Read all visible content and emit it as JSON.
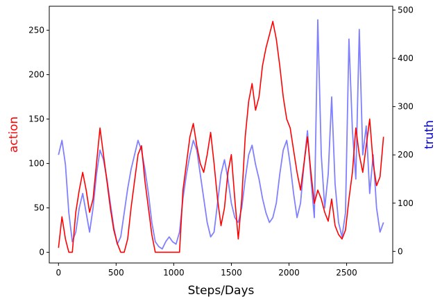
{
  "chart_data": {
    "type": "line",
    "title": "",
    "xlabel": "Steps/Days",
    "ylabel_left": "action",
    "ylabel_right": "truth",
    "xlim": [
      -80,
      2900
    ],
    "ylim_left": [
      -12,
      277
    ],
    "ylim_right": [
      -24,
      508
    ],
    "xticks": [
      0,
      500,
      1000,
      1500,
      2000,
      2500
    ],
    "yticks_left": [
      0,
      50,
      100,
      150,
      200,
      250
    ],
    "yticks_right": [
      0,
      100,
      200,
      300,
      400,
      500
    ],
    "grid": false,
    "colors": {
      "action": "#ff0000",
      "truth": "#8080ff",
      "axis_left_label": "#ff0000",
      "axis_right_label": "#0000cc"
    },
    "series": [
      {
        "key": "action",
        "axis": "left",
        "x": [
          0,
          30,
          60,
          90,
          120,
          150,
          180,
          210,
          240,
          270,
          300,
          330,
          360,
          390,
          420,
          450,
          480,
          510,
          540,
          570,
          600,
          630,
          660,
          690,
          720,
          750,
          780,
          810,
          840,
          870,
          900,
          930,
          960,
          990,
          1020,
          1050,
          1080,
          1110,
          1140,
          1170,
          1200,
          1230,
          1260,
          1290,
          1320,
          1350,
          1380,
          1410,
          1440,
          1470,
          1500,
          1530,
          1560,
          1590,
          1620,
          1650,
          1680,
          1710,
          1740,
          1770,
          1800,
          1830,
          1860,
          1890,
          1920,
          1950,
          1980,
          2010,
          2040,
          2070,
          2100,
          2130,
          2160,
          2190,
          2220,
          2250,
          2280,
          2310,
          2340,
          2370,
          2400,
          2430,
          2460,
          2490,
          2520,
          2550,
          2580,
          2610,
          2640,
          2670,
          2700,
          2730,
          2760,
          2790,
          2820
        ],
        "y": [
          5,
          40,
          15,
          0,
          0,
          45,
          70,
          90,
          70,
          45,
          60,
          100,
          140,
          110,
          80,
          50,
          25,
          10,
          0,
          0,
          15,
          50,
          80,
          110,
          120,
          80,
          50,
          20,
          0,
          0,
          0,
          0,
          0,
          0,
          0,
          0,
          70,
          100,
          130,
          145,
          120,
          100,
          90,
          110,
          135,
          100,
          60,
          30,
          50,
          90,
          110,
          60,
          15,
          60,
          130,
          170,
          190,
          160,
          175,
          210,
          230,
          245,
          260,
          240,
          210,
          175,
          150,
          140,
          115,
          90,
          70,
          100,
          130,
          90,
          55,
          70,
          60,
          45,
          35,
          60,
          30,
          20,
          15,
          25,
          60,
          90,
          140,
          110,
          90,
          120,
          150,
          100,
          75,
          85,
          130
        ]
      },
      {
        "key": "truth",
        "axis": "right",
        "x": [
          0,
          30,
          60,
          90,
          120,
          150,
          180,
          210,
          240,
          270,
          300,
          330,
          360,
          390,
          420,
          450,
          480,
          510,
          540,
          570,
          600,
          630,
          660,
          690,
          720,
          750,
          780,
          810,
          840,
          870,
          900,
          930,
          960,
          990,
          1020,
          1050,
          1080,
          1110,
          1140,
          1170,
          1200,
          1230,
          1260,
          1290,
          1320,
          1350,
          1380,
          1410,
          1440,
          1470,
          1500,
          1530,
          1560,
          1590,
          1620,
          1650,
          1680,
          1710,
          1740,
          1770,
          1800,
          1830,
          1860,
          1890,
          1920,
          1950,
          1980,
          2010,
          2040,
          2070,
          2100,
          2130,
          2160,
          2190,
          2220,
          2250,
          2280,
          2310,
          2340,
          2370,
          2400,
          2430,
          2460,
          2490,
          2520,
          2550,
          2580,
          2610,
          2640,
          2670,
          2700,
          2730,
          2760,
          2790,
          2820
        ],
        "y": [
          200,
          230,
          180,
          80,
          20,
          40,
          90,
          120,
          80,
          40,
          90,
          160,
          210,
          190,
          150,
          100,
          50,
          15,
          30,
          80,
          130,
          170,
          200,
          230,
          210,
          170,
          120,
          60,
          20,
          10,
          5,
          20,
          30,
          20,
          15,
          40,
          110,
          160,
          200,
          230,
          210,
          160,
          110,
          60,
          30,
          40,
          100,
          160,
          190,
          150,
          100,
          70,
          60,
          90,
          150,
          200,
          220,
          180,
          150,
          110,
          80,
          60,
          70,
          100,
          160,
          210,
          230,
          180,
          120,
          70,
          100,
          180,
          250,
          150,
          70,
          480,
          200,
          90,
          160,
          320,
          140,
          60,
          30,
          80,
          440,
          250,
          150,
          460,
          200,
          260,
          120,
          200,
          90,
          40,
          60
        ]
      }
    ]
  }
}
